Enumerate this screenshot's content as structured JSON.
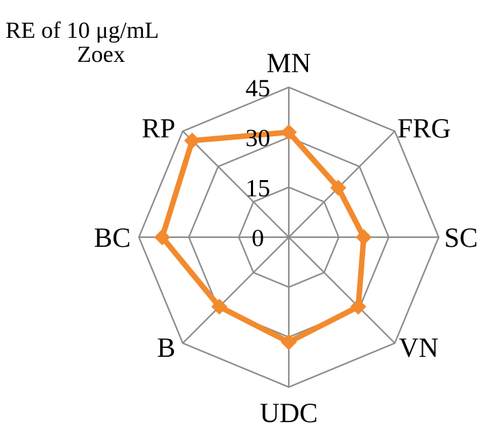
{
  "chart_data": {
    "type": "radar",
    "title": "RE of 10 μg/mL Zoex",
    "title_lines": [
      "RE of 10 μg/mL",
      "Zoex"
    ],
    "categories": [
      "MN",
      "FRG",
      "SC",
      "VN",
      "UDC",
      "B",
      "BC",
      "RP"
    ],
    "series": [
      {
        "values": [
          31.5,
          21,
          22.5,
          29.5,
          31.5,
          29.5,
          38,
          41
        ]
      }
    ],
    "r_ticks": [
      0,
      15,
      30,
      45
    ],
    "r_range": [
      0,
      45
    ],
    "grid": true,
    "series_color": "#f28a2e",
    "grid_color": "#8c8c8c"
  }
}
